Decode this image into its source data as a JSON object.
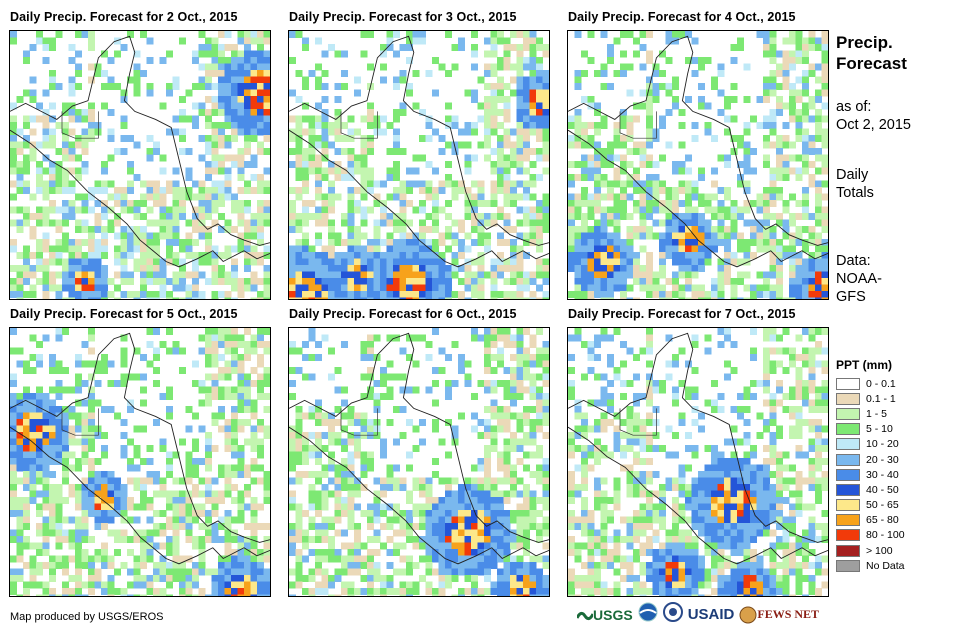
{
  "panels": [
    {
      "title": "Daily Precip. Forecast for 2 Oct., 2015",
      "seed": 11,
      "bias": 0.55,
      "hot": [
        [
          0.95,
          0.22,
          0.9
        ],
        [
          0.28,
          0.92,
          0.5
        ]
      ]
    },
    {
      "title": "Daily Precip. Forecast for 3 Oct., 2015",
      "seed": 23,
      "bias": 0.45,
      "hot": [
        [
          0.05,
          0.97,
          0.95
        ],
        [
          0.45,
          0.93,
          0.9
        ],
        [
          0.25,
          0.9,
          0.6
        ],
        [
          0.96,
          0.25,
          0.6
        ]
      ]
    },
    {
      "title": "Daily Precip. Forecast for 4 Oct., 2015",
      "seed": 37,
      "bias": 0.25,
      "hot": [
        [
          0.12,
          0.85,
          0.7
        ],
        [
          0.45,
          0.77,
          0.6
        ],
        [
          0.97,
          0.95,
          0.7
        ]
      ]
    },
    {
      "title": "Daily Precip. Forecast for 5 Oct., 2015",
      "seed": 41,
      "bias": 0.15,
      "hot": [
        [
          0.08,
          0.38,
          0.8
        ],
        [
          0.35,
          0.62,
          0.5
        ],
        [
          0.88,
          0.97,
          0.7
        ]
      ]
    },
    {
      "title": "Daily Precip. Forecast for 6 Oct., 2015",
      "seed": 53,
      "bias": 0.2,
      "hot": [
        [
          0.68,
          0.75,
          0.95
        ],
        [
          0.88,
          0.96,
          0.6
        ]
      ]
    },
    {
      "title": "Daily Precip. Forecast for 7 Oct., 2015",
      "seed": 67,
      "bias": 0.35,
      "hot": [
        [
          0.62,
          0.64,
          0.95
        ],
        [
          0.4,
          0.9,
          0.6
        ],
        [
          0.68,
          0.97,
          0.6
        ]
      ]
    }
  ],
  "side": {
    "title_line1": "Precip.",
    "title_line2": "Forecast",
    "asof_label": "as of:",
    "asof_date": "Oct 2, 2015",
    "totals_line1": "Daily",
    "totals_line2": "Totals",
    "data_line1": "Data:",
    "data_line2": "NOAA-",
    "data_line3": "GFS"
  },
  "legend": {
    "title": "PPT (mm)",
    "items": [
      {
        "label": "0 - 0.1",
        "color": "#ffffff"
      },
      {
        "label": "0.1 - 1",
        "color": "#ebd9b8"
      },
      {
        "label": "1 - 5",
        "color": "#c3f5b0"
      },
      {
        "label": "5 - 10",
        "color": "#7de873"
      },
      {
        "label": "10 - 20",
        "color": "#bfe9f7"
      },
      {
        "label": "20 - 30",
        "color": "#7ab8ee"
      },
      {
        "label": "30 - 40",
        "color": "#4a8ce8"
      },
      {
        "label": "40 - 50",
        "color": "#2455d8"
      },
      {
        "label": "50 - 65",
        "color": "#fde88a"
      },
      {
        "label": "65 - 80",
        "color": "#f7a21b"
      },
      {
        "label": "80 - 100",
        "color": "#f23a0a"
      },
      {
        "label": "> 100",
        "color": "#a52020"
      },
      {
        "label": "No Data",
        "color": "#9e9e9e"
      }
    ]
  },
  "credit": "Map produced by USGS/EROS",
  "logos": {
    "usgs": "USGS",
    "usaid": "USAID",
    "fewsnet": "FEWS NET"
  }
}
